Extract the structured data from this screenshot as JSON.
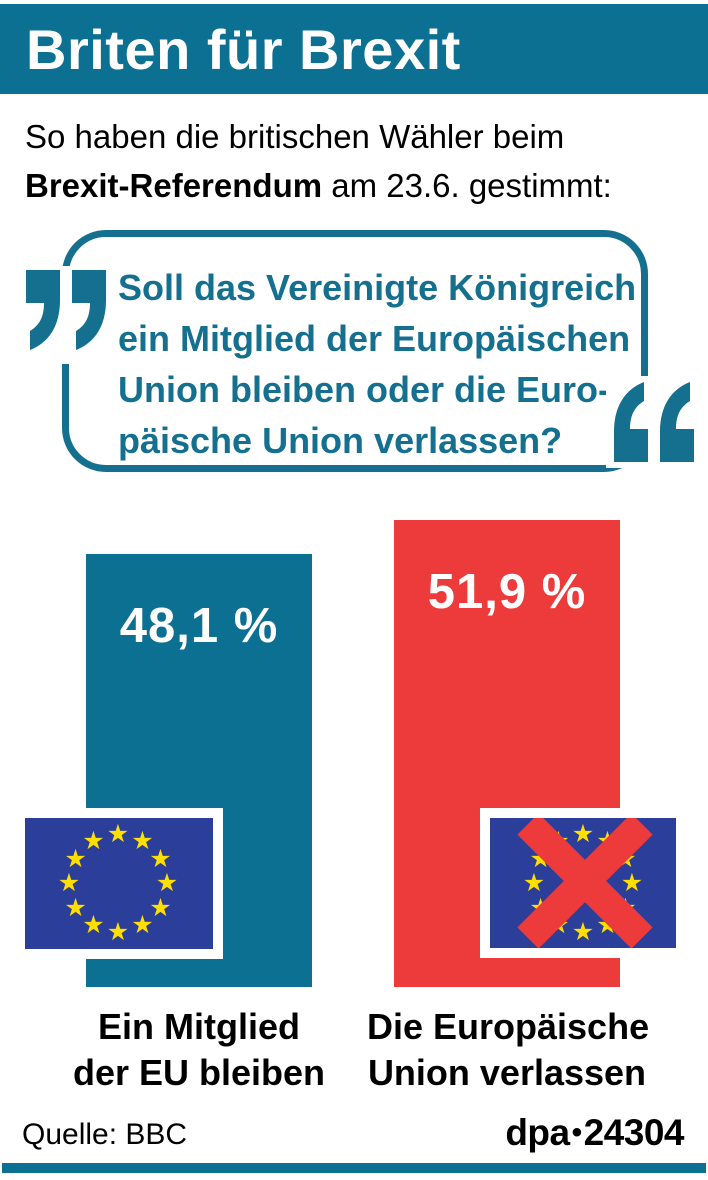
{
  "header": {
    "title": "Briten für Brexit",
    "bg_color": "#0C7093"
  },
  "intro": {
    "line1": "So haben die britischen Wähler beim",
    "line2_bold": "Brexit-Referendum",
    "line2_rest": " am 23.6. gestimmt:"
  },
  "question": {
    "lines": [
      "Soll das Vereinigte Königreich",
      "ein Mitglied der Europäischen",
      "Union bleiben oder die Euro-",
      "päische Union verlassen?"
    ],
    "color": "#15708F"
  },
  "chart_data": {
    "type": "bar",
    "title": "Briten für Brexit",
    "subtitle": "So haben die britischen Wähler beim Brexit-Referendum am 23.6. gestimmt:",
    "question": "Soll das Vereinigte Königreich ein Mitglied der Europäischen Union bleiben oder die Europäische Union verlassen?",
    "categories": [
      "Ein Mitglied der EU bleiben",
      "Die Europäische Union verlassen"
    ],
    "values": [
      48.1,
      51.9
    ],
    "value_labels": [
      "48,1 %",
      "51,9 %"
    ],
    "unit": "%",
    "colors": [
      "#0C7093",
      "#ED3B3B"
    ],
    "legend_position": "none",
    "grid": false,
    "source": "Quelle: BBC",
    "credit": "dpa•24304"
  },
  "bars": [
    {
      "value": 48.1,
      "value_label": "48,1 %",
      "label_line1": "Ein Mitglied",
      "label_line2": "der EU bleiben",
      "color": "#0C7093",
      "flag": "eu-flag"
    },
    {
      "value": 51.9,
      "value_label": "51,9 %",
      "label_line1": "Die Europäische",
      "label_line2": "Union verlassen",
      "color": "#ED3B3B",
      "flag": "eu-flag-crossed"
    }
  ],
  "flags": {
    "stars": 12,
    "blue": "#2B3E99",
    "star_yellow": "#FFDE00",
    "cross_red": "#ED3B3B"
  },
  "footer": {
    "source": "Quelle: BBC",
    "credit_dpa": "dpa",
    "credit_bullet": "•",
    "credit_number": "24304"
  }
}
